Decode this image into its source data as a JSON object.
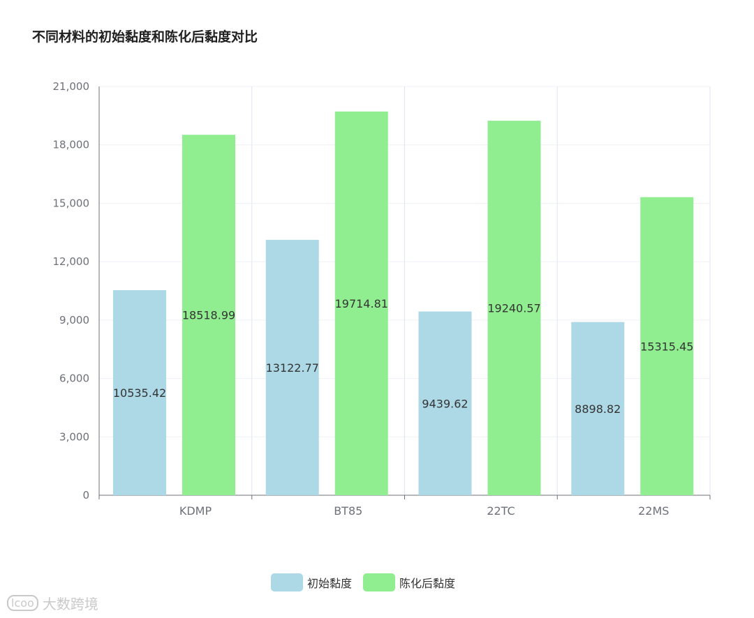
{
  "chart_data": {
    "type": "bar",
    "title": "不同材料的初始黏度和陈化后黏度对比",
    "categories": [
      "KDMP",
      "BT85",
      "22TC",
      "22MS"
    ],
    "series": [
      {
        "name": "初始黏度",
        "values": [
          10535.42,
          13122.77,
          9439.62,
          8898.82
        ],
        "color": "#add8e6"
      },
      {
        "name": "陈化后黏度",
        "values": [
          18518.99,
          19714.81,
          19240.57,
          15315.45
        ],
        "color": "#90ee90"
      }
    ],
    "ylim": [
      0,
      21000
    ],
    "yticks": [
      "0",
      "3,000",
      "6,000",
      "9,000",
      "12,000",
      "15,000",
      "18,000",
      "21,000"
    ],
    "grid": true,
    "legend_position": "bottom-center"
  },
  "watermark": {
    "logo_text": "lcoo",
    "text": "大数跨境"
  }
}
